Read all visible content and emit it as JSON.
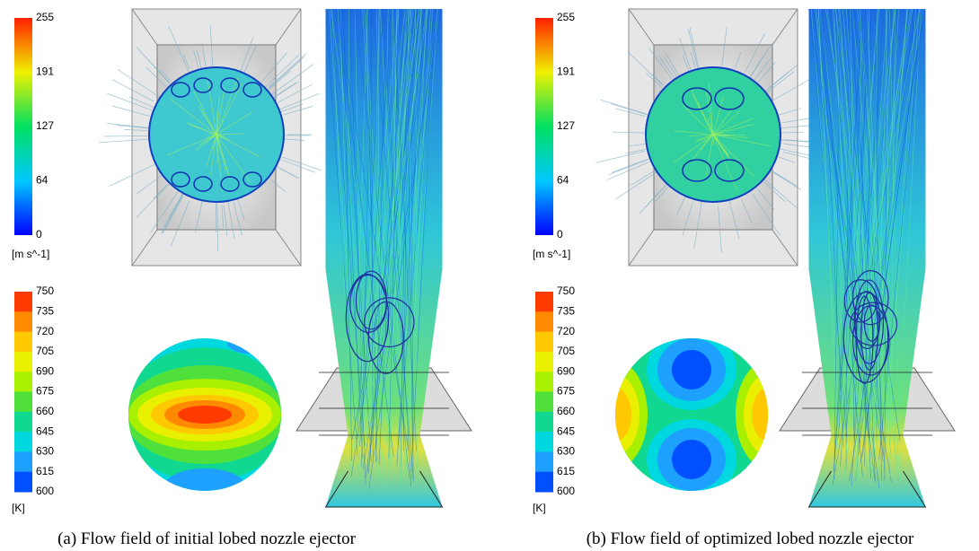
{
  "panels": [
    {
      "velocity_legend": {
        "ticks": [
          "255",
          "191",
          "127",
          "64",
          "0"
        ],
        "unit": "[m s^-1]"
      },
      "temperature_legend": {
        "ticks": [
          "750",
          "735",
          "720",
          "705",
          "690",
          "675",
          "660",
          "645",
          "630",
          "615",
          "600"
        ],
        "unit": "[K]"
      },
      "caption": "(a) Flow field of initial lobed nozzle ejector"
    },
    {
      "velocity_legend": {
        "ticks": [
          "255",
          "191",
          "127",
          "64",
          "0"
        ],
        "unit": "[m s^-1]"
      },
      "temperature_legend": {
        "ticks": [
          "750",
          "735",
          "720",
          "705",
          "690",
          "675",
          "660",
          "645",
          "630",
          "615",
          "600"
        ],
        "unit": "[K]"
      },
      "caption": "(b) Flow field of optimized lobed nozzle ejector"
    }
  ]
}
